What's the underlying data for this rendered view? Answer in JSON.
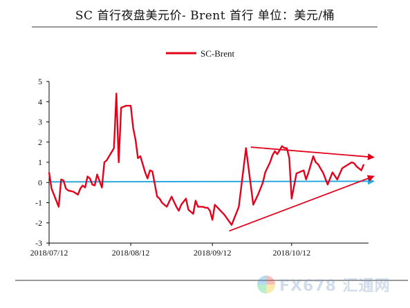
{
  "title": "SC 首行夜盘美元价- Brent 首行  单位：美元/桶",
  "watermark": {
    "text": "FX678 汇通网",
    "logo": "fx678-logo-icon"
  },
  "colors": {
    "line": "#e3001b",
    "zero_line": "#29a8e0",
    "arrow": "#e3001b",
    "axis": "#000000"
  },
  "chart_data": {
    "type": "line",
    "title": "SC 首行夜盘美元价- Brent 首行",
    "ylabel": "",
    "xlabel": "",
    "ylim": [
      -3,
      5
    ],
    "yticks": [
      -3,
      -2,
      -1,
      0,
      1,
      2,
      3,
      4,
      5
    ],
    "xlim": [
      0,
      133
    ],
    "xticks": [
      {
        "x": 0,
        "label": "2018/07/12"
      },
      {
        "x": 34,
        "label": "2018/08/12"
      },
      {
        "x": 68,
        "label": "2018/09/12"
      },
      {
        "x": 101,
        "label": "2018/10/12"
      }
    ],
    "legend": {
      "position": "top-center",
      "entries": [
        "SC-Brent"
      ]
    },
    "grid": false,
    "series": [
      {
        "name": "SC-Brent",
        "x": [
          0,
          1,
          4,
          5,
          6,
          7,
          8,
          10,
          12,
          13,
          14,
          15,
          16,
          17,
          18,
          19,
          20,
          22,
          23,
          24,
          25,
          26,
          27,
          28,
          29,
          30,
          32,
          33,
          34,
          35,
          36,
          37,
          38,
          39,
          40,
          41,
          42,
          43,
          45,
          46,
          47,
          49,
          51,
          53,
          54,
          55,
          57,
          58,
          60,
          61,
          62,
          63,
          64,
          65,
          66,
          67,
          68,
          69,
          71,
          73,
          76,
          79,
          82,
          85,
          87,
          89,
          90,
          92,
          93,
          94,
          95,
          96,
          97,
          98,
          99,
          100,
          101,
          103,
          105,
          106,
          107,
          108,
          110,
          111,
          112,
          113,
          114,
          115,
          116,
          118,
          120,
          122,
          124,
          126,
          127,
          128,
          130,
          131
        ],
        "values": [
          0.5,
          -0.3,
          -1.2,
          0.15,
          0.1,
          -0.3,
          -0.4,
          -0.45,
          -0.6,
          -0.3,
          -0.15,
          -0.25,
          0.3,
          0.2,
          -0.1,
          -0.15,
          0.4,
          -0.25,
          1.0,
          1.1,
          1.3,
          1.5,
          1.7,
          4.4,
          1.0,
          3.7,
          3.8,
          3.8,
          3.8,
          2.7,
          2.1,
          1.2,
          1.3,
          0.9,
          0.5,
          0.2,
          0.6,
          0.55,
          -0.7,
          -0.8,
          -1.0,
          -1.2,
          -0.7,
          -1.2,
          -1.4,
          -1.1,
          -0.8,
          -1.35,
          -1.55,
          -0.9,
          -1.2,
          -1.2,
          -1.2,
          -1.25,
          -1.25,
          -1.4,
          -1.85,
          -1.1,
          -1.35,
          -1.6,
          -2.1,
          -1.2,
          1.7,
          -1.1,
          -0.6,
          0.0,
          0.5,
          1.0,
          1.35,
          1.55,
          1.4,
          1.6,
          1.8,
          1.7,
          1.7,
          1.2,
          -0.8,
          0.45,
          0.55,
          0.6,
          0.15,
          0.5,
          1.3,
          1.0,
          0.9,
          0.7,
          0.5,
          0.2,
          -0.1,
          0.5,
          0.15,
          0.7,
          0.85,
          1.0,
          0.95,
          0.8,
          0.6,
          0.9
        ]
      },
      {
        "name": "zero-line",
        "x": [
          0,
          135
        ],
        "values": [
          0.03,
          0.06
        ]
      }
    ],
    "annotations": [
      {
        "type": "arrow",
        "from": [
          84,
          1.75
        ],
        "to": [
          135,
          1.25
        ]
      },
      {
        "type": "arrow",
        "from": [
          75,
          -2.4
        ],
        "to": [
          135,
          0.3
        ]
      }
    ]
  }
}
